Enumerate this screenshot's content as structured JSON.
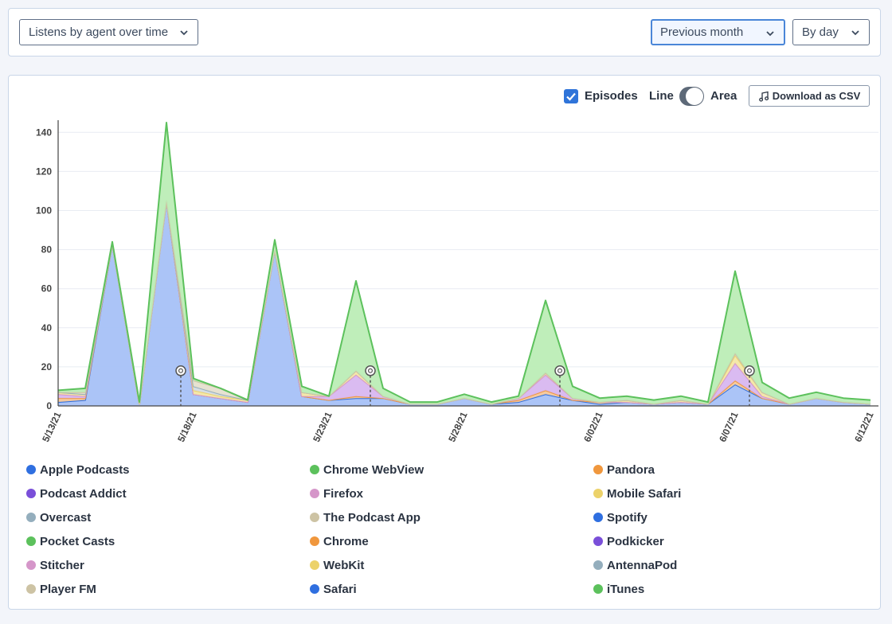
{
  "controls": {
    "metric_label": "Listens by agent over time",
    "range_label": "Previous month",
    "interval_label": "By day",
    "episodes_label": "Episodes",
    "episodes_checked": true,
    "line_label": "Line",
    "area_label": "Area",
    "mode": "area",
    "csv_label": "Download as CSV"
  },
  "legend": [
    {
      "name": "Apple Podcasts",
      "color": "#2f6fe0"
    },
    {
      "name": "Chrome WebView",
      "color": "#5cc15c"
    },
    {
      "name": "Pandora",
      "color": "#f0973d"
    },
    {
      "name": "Podcast Addict",
      "color": "#7a4fd9"
    },
    {
      "name": "Firefox",
      "color": "#d596c9"
    },
    {
      "name": "Mobile Safari",
      "color": "#ecd26a"
    },
    {
      "name": "Overcast",
      "color": "#94aebd"
    },
    {
      "name": "The Podcast App",
      "color": "#cdc3a4"
    },
    {
      "name": "Spotify",
      "color": "#2f6fe0"
    },
    {
      "name": "Pocket Casts",
      "color": "#5cc15c"
    },
    {
      "name": "Chrome",
      "color": "#f0973d"
    },
    {
      "name": "Podkicker",
      "color": "#7a4fd9"
    },
    {
      "name": "Stitcher",
      "color": "#d596c9"
    },
    {
      "name": "WebKit",
      "color": "#ecd26a"
    },
    {
      "name": "AntennaPod",
      "color": "#94aebd"
    },
    {
      "name": "Player FM",
      "color": "#cdc3a4"
    },
    {
      "name": "Safari",
      "color": "#2f6fe0"
    },
    {
      "name": "iTunes",
      "color": "#5cc15c"
    }
  ],
  "chart_data": {
    "type": "area",
    "stacked": true,
    "grid": true,
    "ylim": [
      0,
      145
    ],
    "yticks": [
      0,
      20,
      40,
      60,
      80,
      100,
      120,
      140
    ],
    "x_ticks": [
      "5/13/21",
      "5/18/21",
      "5/23/21",
      "5/28/21",
      "6/02/21",
      "6/07/21",
      "6/12/21"
    ],
    "dates": [
      "5/13/21",
      "5/14/21",
      "5/15/21",
      "5/16/21",
      "5/17/21",
      "5/18/21",
      "5/19/21",
      "5/20/21",
      "5/21/21",
      "5/22/21",
      "5/23/21",
      "5/24/21",
      "5/25/21",
      "5/26/21",
      "5/27/21",
      "5/28/21",
      "5/29/21",
      "5/30/21",
      "5/31/21",
      "6/01/21",
      "6/02/21",
      "6/03/21",
      "6/04/21",
      "6/05/21",
      "6/06/21",
      "6/07/21",
      "6/08/21",
      "6/09/21",
      "6/10/21",
      "6/11/21",
      "6/12/21"
    ],
    "series": [
      {
        "name": "Apple Podcasts",
        "color": "#2f6fe0",
        "fill": "#a7c1f7",
        "values": [
          2,
          3,
          83,
          1,
          105,
          6,
          4,
          2,
          80,
          5,
          3,
          4,
          4,
          1,
          1,
          4,
          1,
          2,
          6,
          3,
          1,
          2,
          1,
          2,
          1,
          11,
          4,
          1,
          4,
          2,
          1
        ]
      },
      {
        "name": "Pandora",
        "color": "#f0973d",
        "fill": "#f6c89c",
        "values": [
          2,
          1,
          0,
          0,
          0,
          0,
          0,
          0,
          0,
          0,
          0,
          1,
          0,
          0,
          0,
          0,
          0,
          1,
          2,
          0,
          1,
          0,
          0,
          0,
          0,
          2,
          0,
          0,
          0,
          0,
          0
        ]
      },
      {
        "name": "Firefox",
        "color": "#d596c9",
        "fill": "#d8b7f0",
        "values": [
          2,
          1,
          0,
          0,
          0,
          0,
          0,
          0,
          0,
          0,
          2,
          11,
          1,
          0,
          0,
          0,
          0,
          1,
          8,
          1,
          0,
          0,
          0,
          0,
          0,
          9,
          1,
          0,
          0,
          0,
          0
        ]
      },
      {
        "name": "Mobile Safari",
        "color": "#ecd26a",
        "fill": "#f3e7a5",
        "values": [
          1,
          1,
          0,
          0,
          0,
          2,
          1,
          1,
          0,
          2,
          0,
          2,
          0,
          0,
          0,
          0,
          0,
          0,
          1,
          0,
          0,
          1,
          0,
          1,
          0,
          4,
          2,
          0,
          0,
          0,
          0
        ]
      },
      {
        "name": "Overcast",
        "color": "#94aebd",
        "fill": "#d6dde3",
        "values": [
          0,
          0,
          0,
          0,
          0,
          2,
          1,
          0,
          0,
          0,
          0,
          0,
          0,
          0,
          0,
          0,
          0,
          0,
          0,
          0,
          0,
          0,
          0,
          0,
          0,
          1,
          0,
          0,
          0,
          0,
          0
        ]
      },
      {
        "name": "The Podcast App",
        "color": "#cdc3a4",
        "fill": "#e6e0cf",
        "values": [
          0,
          1,
          0,
          0,
          0,
          3,
          3,
          0,
          0,
          0,
          0,
          0,
          0,
          0,
          0,
          0,
          0,
          0,
          0,
          0,
          0,
          0,
          0,
          0,
          0,
          0,
          0,
          0,
          0,
          0,
          0
        ]
      },
      {
        "name": "Pocket Casts",
        "color": "#5cc15c",
        "fill": "#bcedb6",
        "values": [
          1,
          2,
          1,
          1,
          40,
          1,
          0,
          0,
          5,
          3,
          0,
          46,
          4,
          1,
          1,
          2,
          1,
          1,
          37,
          6,
          2,
          2,
          2,
          2,
          1,
          42,
          5,
          3,
          3,
          2,
          2
        ]
      }
    ],
    "episode_markers": [
      "5/18/21",
      "5/25/21",
      "6/01/21",
      "6/08/21"
    ],
    "marker_y": 18
  }
}
